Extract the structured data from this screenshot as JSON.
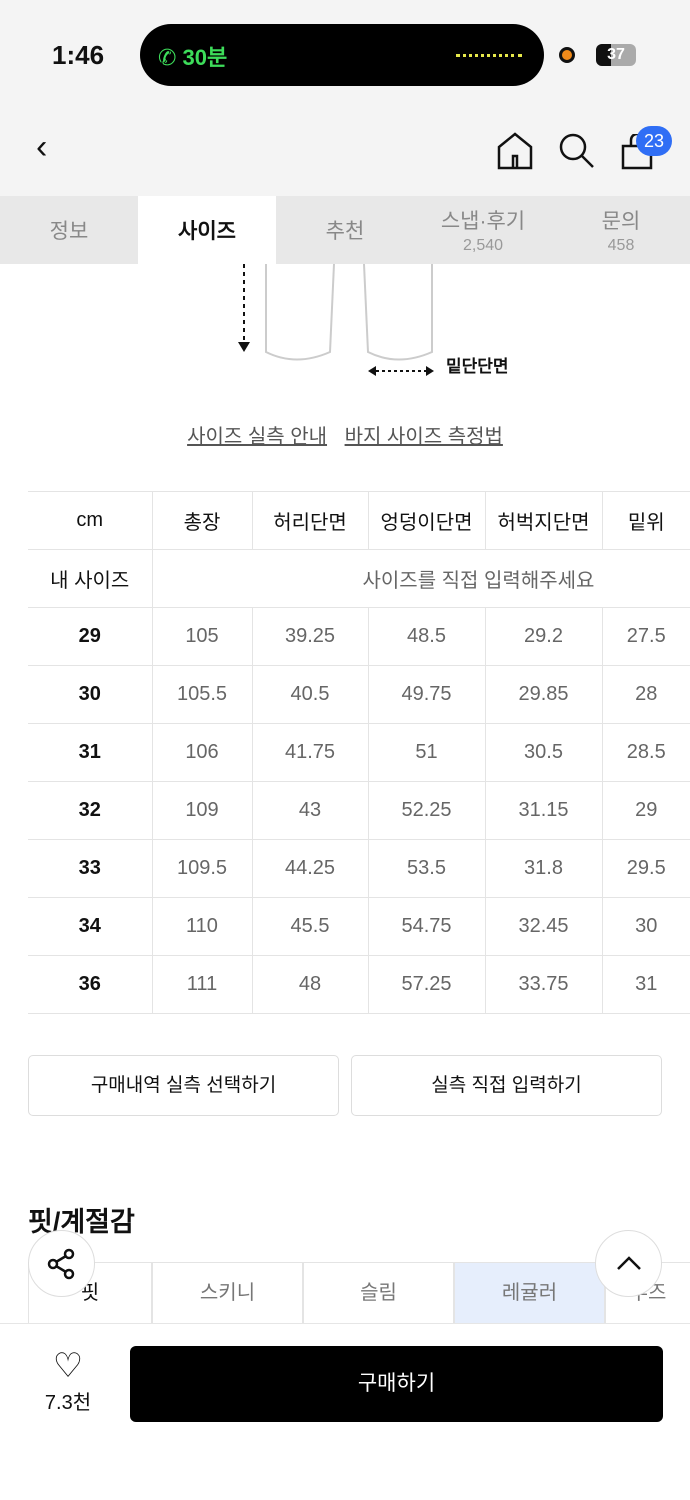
{
  "status": {
    "time": "1:46",
    "call": "30분",
    "battery": "37",
    "battery_level": 0.37
  },
  "nav": {
    "cart_count": "23"
  },
  "tabs": [
    {
      "label": "정보"
    },
    {
      "label": "사이즈",
      "active": true
    },
    {
      "label": "추천"
    },
    {
      "label": "스냅·후기",
      "count": "2,540"
    },
    {
      "label": "문의",
      "count": "458"
    }
  ],
  "diagram": {
    "label": "밑단단면"
  },
  "links": {
    "guide": "사이즈 실측 안내",
    "measure": "바지 사이즈 측정법"
  },
  "size_table": {
    "headers": [
      "cm",
      "총장",
      "허리단면",
      "엉덩이단면",
      "허벅지단면",
      "밑위"
    ],
    "my_size_label": "내 사이즈",
    "my_size_placeholder": "사이즈를 직접 입력해주세요",
    "rows": [
      [
        "29",
        "105",
        "39.25",
        "48.5",
        "29.2",
        "27.5"
      ],
      [
        "30",
        "105.5",
        "40.5",
        "49.75",
        "29.85",
        "28"
      ],
      [
        "31",
        "106",
        "41.75",
        "51",
        "30.5",
        "28.5"
      ],
      [
        "32",
        "109",
        "43",
        "52.25",
        "31.15",
        "29"
      ],
      [
        "33",
        "109.5",
        "44.25",
        "53.5",
        "31.8",
        "29.5"
      ],
      [
        "34",
        "110",
        "45.5",
        "54.75",
        "32.45",
        "30"
      ],
      [
        "36",
        "111",
        "48",
        "57.25",
        "33.75",
        "31"
      ]
    ]
  },
  "buttons": {
    "purchase_history": "구매내역 실측 선택하기",
    "direct_input": "실측 직접 입력하기"
  },
  "fit": {
    "title": "핏/계절감",
    "row_label": "핏",
    "options": [
      "스키니",
      "슬림",
      "레귤러",
      "루즈"
    ],
    "selected": "레귤러"
  },
  "bottom": {
    "likes": "7.3천",
    "buy": "구매하기"
  }
}
